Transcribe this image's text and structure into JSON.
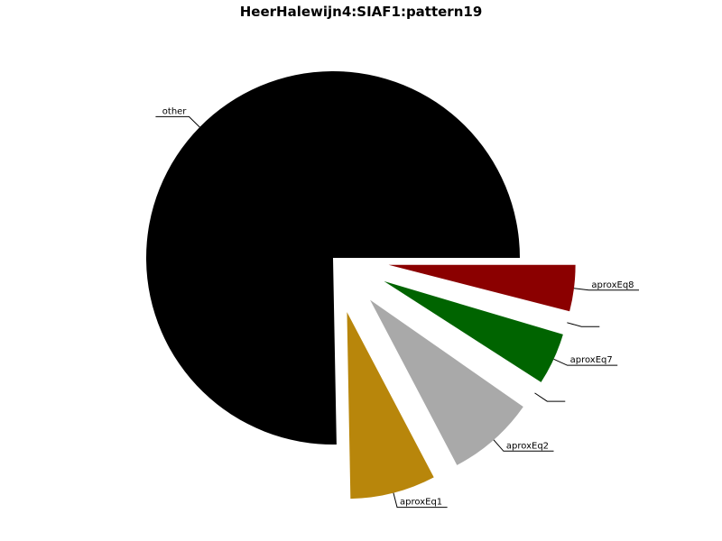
{
  "chart_data": {
    "type": "pie",
    "title": "HeerHalewijn4:SIAF1:pattern19",
    "slices": [
      {
        "label": "other",
        "value": 75.3,
        "color": "#000000",
        "exploded": false
      },
      {
        "label": "aproxEq1",
        "value": 7.4,
        "color": "#b8860b",
        "exploded": true
      },
      {
        "label": "aproxEq2",
        "value": 7.6,
        "color": "#a9a9a9",
        "exploded": true
      },
      {
        "label": "",
        "value": 0.6,
        "color": "#ffffff",
        "exploded": true
      },
      {
        "label": "aproxEq7",
        "value": 4.5,
        "color": "#006400",
        "exploded": true
      },
      {
        "label": "",
        "value": 0.6,
        "color": "#ffffff",
        "exploded": true
      },
      {
        "label": "aproxEq8",
        "value": 4.0,
        "color": "#8b0000",
        "exploded": true
      }
    ],
    "start_angle_deg": 0,
    "direction": "counterclockwise",
    "legend": "none",
    "grid": false
  }
}
